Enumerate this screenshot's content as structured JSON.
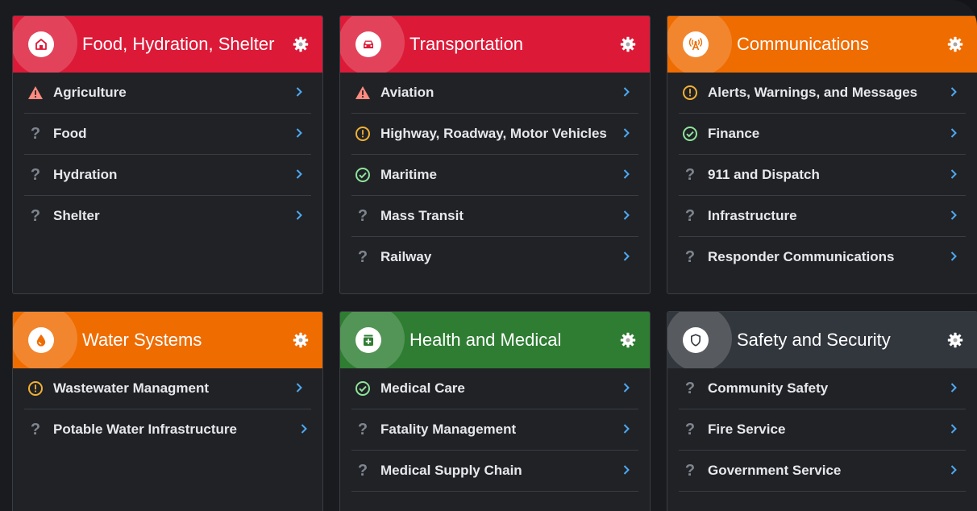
{
  "colors": {
    "red": "#dc1a38",
    "orange": "#ef6c00",
    "green": "#2e7d32",
    "slate": "#32373e",
    "warning": "#ff8a80",
    "caution": "#f2b134",
    "ok": "#8fe39b",
    "unknown": "#7f858f",
    "chevron": "#4ea8f0"
  },
  "cards": [
    {
      "title": "Food, Hydration, Shelter",
      "color": "#dc1a38",
      "icon": "home-icon",
      "items": [
        {
          "label": "Agriculture",
          "status": "warning"
        },
        {
          "label": "Food",
          "status": "unknown"
        },
        {
          "label": "Hydration",
          "status": "unknown"
        },
        {
          "label": "Shelter",
          "status": "unknown"
        }
      ]
    },
    {
      "title": "Transportation",
      "color": "#dc1a38",
      "icon": "car-icon",
      "items": [
        {
          "label": "Aviation",
          "status": "warning"
        },
        {
          "label": "Highway, Roadway, Motor Vehicles",
          "status": "caution"
        },
        {
          "label": "Maritime",
          "status": "ok"
        },
        {
          "label": "Mass Transit",
          "status": "unknown"
        },
        {
          "label": "Railway",
          "status": "unknown"
        }
      ]
    },
    {
      "title": "Communications",
      "color": "#ef6c00",
      "icon": "antenna-icon",
      "items": [
        {
          "label": "Alerts, Warnings, and Messages",
          "status": "caution"
        },
        {
          "label": "Finance",
          "status": "ok"
        },
        {
          "label": "911 and Dispatch",
          "status": "unknown"
        },
        {
          "label": "Infrastructure",
          "status": "unknown"
        },
        {
          "label": "Responder Communications",
          "status": "unknown"
        }
      ]
    },
    {
      "title": "Water Systems",
      "color": "#ef6c00",
      "icon": "water-drop-icon",
      "items": [
        {
          "label": "Wastewater Managment",
          "status": "caution"
        },
        {
          "label": "Potable Water Infrastructure",
          "status": "unknown"
        }
      ]
    },
    {
      "title": "Health and Medical",
      "color": "#2e7d32",
      "icon": "medical-kit-icon",
      "items": [
        {
          "label": "Medical Care",
          "status": "ok"
        },
        {
          "label": "Fatality Management",
          "status": "unknown"
        },
        {
          "label": "Medical Supply Chain",
          "status": "unknown"
        }
      ]
    },
    {
      "title": "Safety and Security",
      "color": "#32373e",
      "icon": "shield-icon",
      "items": [
        {
          "label": "Community Safety",
          "status": "unknown"
        },
        {
          "label": "Fire Service",
          "status": "unknown"
        },
        {
          "label": "Government Service",
          "status": "unknown"
        }
      ]
    }
  ]
}
